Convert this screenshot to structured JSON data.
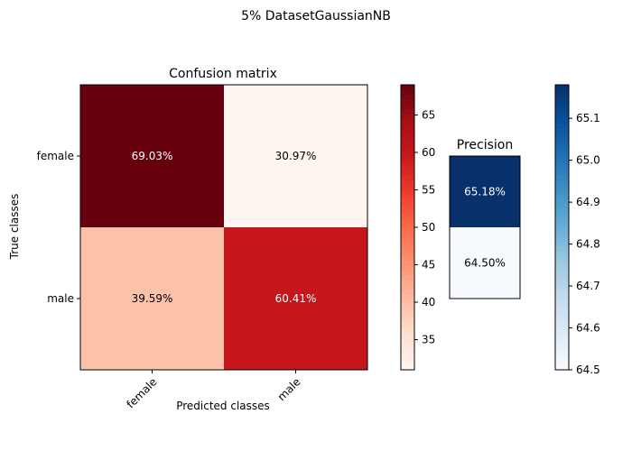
{
  "figure": {
    "suptitle": "5% DatasetGaussianNB"
  },
  "chart_data": [
    {
      "type": "heatmap",
      "title": "Confusion matrix",
      "xlabel": "Predicted classes",
      "ylabel": "True classes",
      "x_categories": [
        "female",
        "male"
      ],
      "y_categories": [
        "female",
        "male"
      ],
      "cells": [
        {
          "row": 0,
          "col": 0,
          "value": 69.03,
          "label": "69.03%"
        },
        {
          "row": 0,
          "col": 1,
          "value": 30.97,
          "label": "30.97%"
        },
        {
          "row": 1,
          "col": 0,
          "value": 39.59,
          "label": "39.59%"
        },
        {
          "row": 1,
          "col": 1,
          "value": 60.41,
          "label": "60.41%"
        }
      ],
      "colormap": "Reds",
      "colorbar": {
        "min": 30.97,
        "max": 69.03,
        "ticks": [
          "35",
          "40",
          "45",
          "50",
          "55",
          "60",
          "65"
        ]
      }
    },
    {
      "type": "heatmap",
      "title": "Precision",
      "cells": [
        {
          "row": 0,
          "col": 0,
          "value": 65.18,
          "label": "65.18%"
        },
        {
          "row": 1,
          "col": 0,
          "value": 64.5,
          "label": "64.50%"
        }
      ],
      "colormap": "Blues",
      "colorbar": {
        "min": 64.5,
        "max": 65.18,
        "ticks": [
          "64.5",
          "64.6",
          "64.7",
          "64.8",
          "64.9",
          "65.0",
          "65.1"
        ]
      }
    }
  ]
}
